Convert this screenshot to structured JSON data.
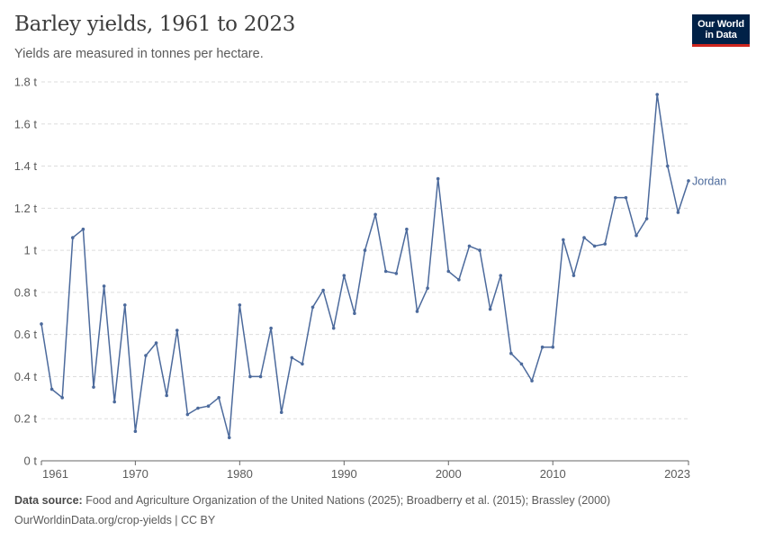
{
  "header": {
    "title": "Barley yields, 1961 to 2023",
    "subtitle": "Yields are measured in tonnes per hectare.",
    "logo_line1": "Our World",
    "logo_line2": "in Data"
  },
  "footer": {
    "source_label": "Data source:",
    "source_text": "Food and Agriculture Organization of the United Nations (2025); Broadberry et al. (2015); Brassley (2000)",
    "url_license": "OurWorldinData.org/crop-yields | CC BY"
  },
  "colors": {
    "series": "#4c6a9c",
    "grid": "#dddddd",
    "axis": "#666666",
    "text": "#5b5b5b",
    "logo_bg": "#002147",
    "logo_accent": "#ce261e"
  },
  "chart_data": {
    "type": "line",
    "grid": "horizontal dashed",
    "legend": "right end of line",
    "xlim": [
      1961,
      2023
    ],
    "ylim": [
      0,
      1.8
    ],
    "x_ticks": [
      1961,
      1970,
      1980,
      1990,
      2000,
      2010,
      2023
    ],
    "y_ticks": [
      {
        "value": 0,
        "label": "0 t"
      },
      {
        "value": 0.2,
        "label": "0.2 t"
      },
      {
        "value": 0.4,
        "label": "0.4 t"
      },
      {
        "value": 0.6,
        "label": "0.6 t"
      },
      {
        "value": 0.8,
        "label": "0.8 t"
      },
      {
        "value": 1.0,
        "label": "1 t"
      },
      {
        "value": 1.2,
        "label": "1.2 t"
      },
      {
        "value": 1.4,
        "label": "1.4 t"
      },
      {
        "value": 1.6,
        "label": "1.6 t"
      },
      {
        "value": 1.8,
        "label": "1.8 t"
      }
    ],
    "series": [
      {
        "name": "Jordan",
        "x": [
          1961,
          1962,
          1963,
          1964,
          1965,
          1966,
          1967,
          1968,
          1969,
          1970,
          1971,
          1972,
          1973,
          1974,
          1975,
          1976,
          1977,
          1978,
          1979,
          1980,
          1981,
          1982,
          1983,
          1984,
          1985,
          1986,
          1987,
          1988,
          1989,
          1990,
          1991,
          1992,
          1993,
          1994,
          1995,
          1996,
          1997,
          1998,
          1999,
          2000,
          2001,
          2002,
          2003,
          2004,
          2005,
          2006,
          2007,
          2008,
          2009,
          2010,
          2011,
          2012,
          2013,
          2014,
          2015,
          2016,
          2017,
          2018,
          2019,
          2020,
          2021,
          2022,
          2023
        ],
        "y": [
          0.65,
          0.34,
          0.3,
          1.06,
          1.1,
          0.35,
          0.83,
          0.28,
          0.74,
          0.14,
          0.5,
          0.56,
          0.31,
          0.62,
          0.22,
          0.25,
          0.26,
          0.3,
          0.11,
          0.74,
          0.4,
          0.4,
          0.63,
          0.23,
          0.49,
          0.46,
          0.73,
          0.81,
          0.63,
          0.88,
          0.7,
          1.0,
          1.17,
          0.9,
          0.89,
          1.1,
          0.71,
          0.82,
          1.34,
          0.9,
          0.86,
          1.02,
          1.0,
          0.72,
          0.88,
          0.51,
          0.46,
          0.38,
          0.54,
          0.54,
          1.05,
          0.88,
          1.06,
          1.02,
          1.03,
          1.25,
          1.25,
          1.07,
          1.15,
          1.74,
          1.4,
          1.18,
          1.33
        ]
      }
    ]
  }
}
